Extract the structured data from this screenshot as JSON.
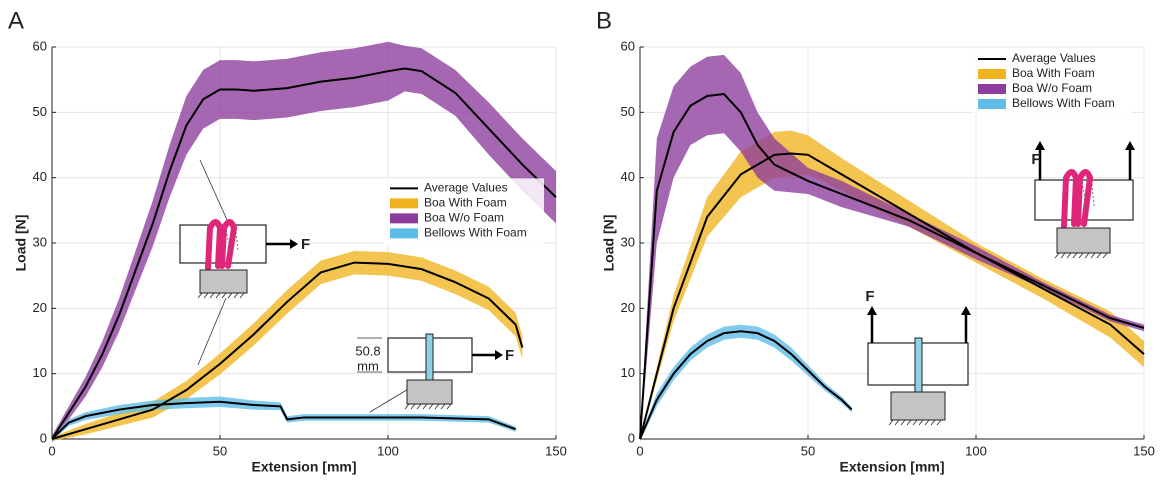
{
  "chart_data": [
    {
      "type": "line",
      "panel": "A",
      "xlabel": "Extension [mm]",
      "ylabel": "Load [N]",
      "xlim": [
        0,
        150
      ],
      "ylim": [
        0,
        60
      ],
      "xticks": [
        0,
        50,
        100,
        150
      ],
      "yticks": [
        0,
        10,
        20,
        30,
        40,
        50,
        60
      ],
      "grid": true,
      "legend": "center right",
      "legend_line": {
        "name": "Average Values",
        "color": "#000000"
      },
      "annotations": [
        "F",
        "50.8",
        "mm",
        "F"
      ],
      "series": [
        {
          "name": "Boa With Foam",
          "color": "#efb31f",
          "x": [
            0,
            10,
            20,
            30,
            40,
            50,
            60,
            70,
            80,
            90,
            100,
            110,
            120,
            130,
            138,
            140
          ],
          "values": [
            0,
            1.5,
            3,
            4.5,
            7.5,
            11.5,
            16,
            21,
            25.5,
            27,
            26.8,
            26,
            24,
            21.5,
            17.5,
            14
          ],
          "spread": [
            0.3,
            0.8,
            1,
            1.2,
            1.4,
            1.6,
            1.7,
            1.8,
            1.8,
            1.8,
            1.8,
            1.8,
            1.8,
            1.8,
            1.8,
            1.8
          ]
        },
        {
          "name": "Boa W/o Foam",
          "color": "#8c3c9c",
          "x": [
            0,
            5,
            10,
            15,
            20,
            25,
            30,
            35,
            40,
            45,
            50,
            55,
            60,
            70,
            80,
            90,
            100,
            105,
            110,
            120,
            130,
            140,
            150
          ],
          "values": [
            0,
            4,
            8,
            13,
            19,
            26,
            33,
            41,
            48,
            52,
            53.5,
            53.5,
            53.3,
            53.7,
            54.7,
            55.3,
            56.3,
            56.7,
            56.3,
            53,
            47.5,
            42,
            37
          ],
          "spread": [
            0.5,
            1,
            1.5,
            2,
            2.5,
            3,
            3.5,
            4,
            4.5,
            4.5,
            4.5,
            4.5,
            4.5,
            4.5,
            4.5,
            4.5,
            4.5,
            3.5,
            3.5,
            3.5,
            4,
            4,
            4
          ]
        },
        {
          "name": "Bellows With Foam",
          "color": "#5cbde8",
          "x": [
            0,
            5,
            10,
            20,
            30,
            40,
            50,
            60,
            68,
            70,
            75,
            90,
            110,
            130,
            138
          ],
          "values": [
            0,
            2.5,
            3.5,
            4.5,
            5.2,
            5.5,
            5.7,
            5.2,
            5,
            3,
            3.3,
            3.3,
            3.3,
            3,
            1.5
          ],
          "spread": [
            0.3,
            0.5,
            0.6,
            0.7,
            0.7,
            0.8,
            0.8,
            0.7,
            0.6,
            0.5,
            0.5,
            0.5,
            0.5,
            0.5,
            0.4
          ]
        }
      ]
    },
    {
      "type": "line",
      "panel": "B",
      "xlabel": "Extension [mm]",
      "ylabel": "Load [N]",
      "xlim": [
        0,
        150
      ],
      "ylim": [
        0,
        60
      ],
      "xticks": [
        0,
        50,
        100,
        150
      ],
      "yticks": [
        0,
        10,
        20,
        30,
        40,
        50,
        60
      ],
      "grid": true,
      "legend": "upper right",
      "legend_line": {
        "name": "Average Values",
        "color": "#000000"
      },
      "annotations": [
        "F",
        "F"
      ],
      "series": [
        {
          "name": "Boa With Foam",
          "color": "#efb31f",
          "x": [
            0,
            5,
            10,
            20,
            30,
            40,
            45,
            50,
            60,
            80,
            100,
            120,
            140,
            150
          ],
          "values": [
            0,
            10,
            20,
            34,
            40.5,
            43.5,
            43.7,
            43.5,
            40.5,
            34.5,
            28.5,
            23,
            17.5,
            13
          ],
          "spread": [
            0.3,
            1,
            2,
            3,
            3.5,
            3.5,
            3.5,
            3,
            2.5,
            2,
            1.5,
            1.5,
            2,
            2
          ]
        },
        {
          "name": "Boa W/o Foam",
          "color": "#8c3c9c",
          "x": [
            0,
            5,
            10,
            15,
            20,
            25,
            30,
            35,
            40,
            50,
            60,
            80,
            100,
            120,
            140,
            150
          ],
          "values": [
            0,
            38,
            47,
            51,
            52.5,
            52.8,
            50,
            45,
            42,
            39.5,
            37.5,
            33.5,
            28.5,
            23.5,
            18.5,
            17
          ],
          "spread": [
            0.5,
            8,
            7,
            6,
            6,
            6,
            6,
            5,
            4,
            2,
            2,
            1,
            1,
            0.5,
            0.5,
            0.5
          ]
        },
        {
          "name": "Bellows With Foam",
          "color": "#5cbde8",
          "x": [
            0,
            5,
            10,
            15,
            20,
            25,
            30,
            35,
            40,
            45,
            50,
            55,
            60,
            63
          ],
          "values": [
            0,
            6,
            10,
            13,
            15,
            16.2,
            16.5,
            16.2,
            15,
            13,
            10.5,
            8,
            6,
            4.5
          ],
          "spread": [
            0.3,
            1,
            1,
            1,
            1,
            1,
            1,
            1,
            1,
            1,
            0.8,
            0.6,
            0.5,
            0.4
          ]
        }
      ]
    }
  ]
}
